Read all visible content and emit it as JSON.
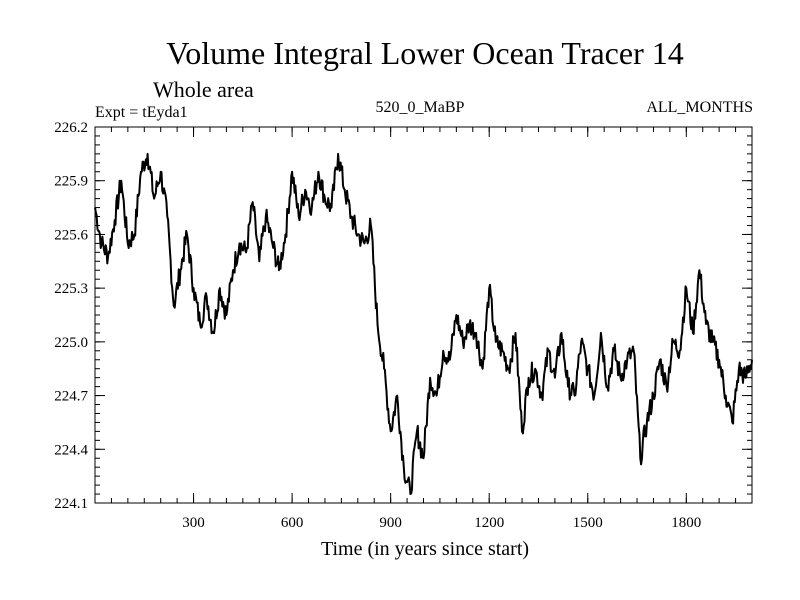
{
  "chart_data": {
    "type": "line",
    "title": "Volume Integral Lower Ocean Tracer 14",
    "subtitle": "Whole area",
    "expt_label": "Expt = tEyda1",
    "center_label": "520_0_MaBP",
    "right_label": "ALL_MONTHS",
    "xlabel": "Time (in years since start)",
    "ylabel": "",
    "xlim": [
      0,
      2000
    ],
    "ylim": [
      224.1,
      226.2
    ],
    "x_ticks": [
      300,
      600,
      900,
      1200,
      1500,
      1800
    ],
    "y_ticks": [
      224.1,
      224.4,
      224.7,
      225.0,
      225.3,
      225.6,
      225.9,
      226.2
    ],
    "x_tick_labels": [
      "300",
      "600",
      "900",
      "1200",
      "1500",
      "1800"
    ],
    "y_tick_labels": [
      "224.1",
      "224.4",
      "224.7",
      "225.0",
      "225.3",
      "225.6",
      "225.9",
      "226.2"
    ],
    "series": [
      {
        "name": "Volume Integral Lower Ocean Tracer 14",
        "x": [
          0,
          20,
          40,
          60,
          80,
          100,
          120,
          140,
          160,
          180,
          200,
          220,
          240,
          260,
          280,
          300,
          320,
          340,
          360,
          380,
          400,
          420,
          440,
          460,
          480,
          500,
          520,
          540,
          560,
          580,
          600,
          620,
          640,
          660,
          680,
          700,
          720,
          740,
          760,
          780,
          800,
          820,
          840,
          860,
          880,
          900,
          920,
          940,
          960,
          980,
          1000,
          1020,
          1040,
          1060,
          1080,
          1100,
          1120,
          1140,
          1160,
          1180,
          1200,
          1220,
          1240,
          1260,
          1280,
          1300,
          1320,
          1340,
          1360,
          1380,
          1400,
          1420,
          1440,
          1460,
          1480,
          1500,
          1520,
          1540,
          1560,
          1580,
          1600,
          1620,
          1640,
          1660,
          1680,
          1700,
          1720,
          1740,
          1760,
          1780,
          1800,
          1820,
          1840,
          1860,
          1880,
          1900,
          1920,
          1940,
          1960,
          1980,
          2000
        ],
        "values": [
          225.75,
          225.55,
          225.48,
          225.68,
          225.9,
          225.55,
          225.6,
          225.95,
          226.05,
          225.8,
          225.95,
          225.7,
          225.2,
          225.4,
          225.6,
          225.3,
          225.1,
          225.25,
          225.05,
          225.3,
          225.15,
          225.4,
          225.55,
          225.5,
          225.78,
          225.45,
          225.7,
          225.55,
          225.4,
          225.6,
          225.95,
          225.7,
          225.85,
          225.75,
          225.95,
          225.8,
          225.75,
          226.05,
          225.85,
          225.7,
          225.6,
          225.55,
          225.65,
          225.1,
          224.85,
          224.5,
          224.7,
          224.3,
          224.15,
          224.5,
          224.35,
          224.8,
          224.7,
          224.95,
          224.9,
          225.15,
          225.0,
          225.1,
          225.05,
          224.85,
          225.3,
          225.0,
          224.95,
          224.85,
          225.05,
          224.5,
          224.8,
          224.85,
          224.7,
          224.95,
          224.8,
          225.05,
          224.75,
          224.7,
          225.0,
          224.85,
          224.7,
          225.05,
          224.75,
          224.95,
          224.8,
          224.9,
          224.95,
          224.35,
          224.55,
          224.7,
          224.9,
          224.75,
          225.0,
          224.95,
          225.3,
          225.05,
          225.4,
          225.1,
          225.0,
          224.9,
          224.7,
          224.55,
          224.85,
          224.8,
          224.9
        ]
      }
    ]
  }
}
